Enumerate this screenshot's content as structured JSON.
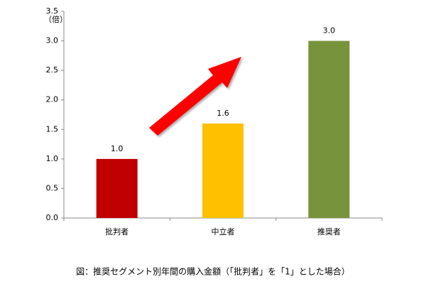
{
  "chart_data": {
    "type": "bar",
    "caption": "図：推奨セグメント別年間の購入金額（「批判者」を「1」とした場合）",
    "y_unit_label": "（倍）",
    "categories": [
      "批判者",
      "中立者",
      "推奨者"
    ],
    "values": [
      1.0,
      1.6,
      3.0
    ],
    "value_labels": [
      "1.0",
      "1.6",
      "3.0"
    ],
    "colors": [
      "#c00000",
      "#ffc000",
      "#77933c"
    ],
    "ylim": [
      0,
      3.5
    ],
    "yticks": [
      {
        "value": 0,
        "label": "0.0"
      },
      0.5,
      {
        "value": 1,
        "label": "1.0"
      },
      1.5,
      {
        "value": 2,
        "label": "2.0"
      },
      2.5,
      {
        "value": 3,
        "label": "3.0"
      },
      3.5
    ],
    "grid": false
  }
}
